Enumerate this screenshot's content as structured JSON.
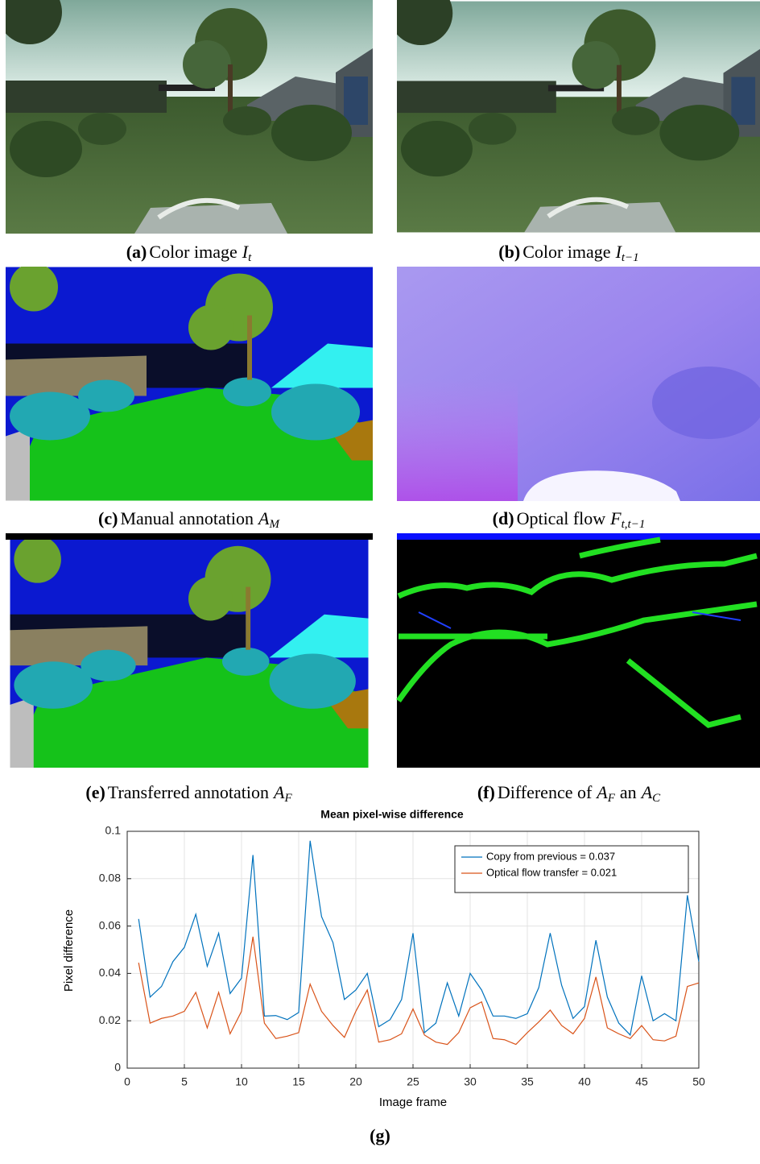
{
  "panels": [
    {
      "label": "(a)",
      "caption": [
        {
          "text": "Color image"
        },
        {
          "math": "I",
          "sub": "t"
        }
      ]
    },
    {
      "label": "(b)",
      "caption": [
        {
          "text": "Color image"
        },
        {
          "math": "I",
          "sub": "t−1"
        }
      ]
    },
    {
      "label": "(c)",
      "caption": [
        {
          "text": "Manual annotation"
        },
        {
          "math": "A",
          "sub": "M"
        }
      ]
    },
    {
      "label": "(d)",
      "caption": [
        {
          "text": "Optical flow"
        },
        {
          "math": "F",
          "sub": "t,t−1"
        }
      ]
    },
    {
      "label": "(e)",
      "caption": [
        {
          "text": "Transferred annotation"
        },
        {
          "math": "A",
          "sub": "F"
        }
      ]
    },
    {
      "label": "(f)",
      "caption": [
        {
          "text": "Difference of"
        },
        {
          "math": "A",
          "sub": "F"
        },
        {
          "text": "an"
        },
        {
          "math": "A",
          "sub": "C"
        }
      ]
    }
  ],
  "chart_label": "(g)",
  "chart_data": {
    "type": "line",
    "title": "Mean pixel-wise difference",
    "x_label": "Image frame",
    "y_label": "Pixel difference",
    "x": [
      1,
      2,
      3,
      4,
      5,
      6,
      7,
      8,
      9,
      10,
      11,
      12,
      13,
      14,
      15,
      16,
      17,
      18,
      19,
      20,
      21,
      22,
      23,
      24,
      25,
      26,
      27,
      28,
      29,
      30,
      31,
      32,
      33,
      34,
      35,
      36,
      37,
      38,
      39,
      40,
      41,
      42,
      43,
      44,
      45,
      46,
      47,
      48,
      49,
      50
    ],
    "series": [
      {
        "name": "Copy from previous = 0.037",
        "color": "#0072bd",
        "values": [
          0.063,
          0.03,
          0.0345,
          0.045,
          0.051,
          0.065,
          0.043,
          0.057,
          0.0315,
          0.038,
          0.09,
          0.022,
          0.0222,
          0.0205,
          0.0235,
          0.096,
          0.064,
          0.053,
          0.029,
          0.033,
          0.04,
          0.0175,
          0.0205,
          0.029,
          0.057,
          0.015,
          0.019,
          0.036,
          0.022,
          0.04,
          0.033,
          0.022,
          0.022,
          0.021,
          0.023,
          0.034,
          0.057,
          0.035,
          0.021,
          0.026,
          0.054,
          0.03,
          0.019,
          0.014,
          0.039,
          0.02,
          0.023,
          0.02,
          0.073,
          0.045
        ]
      },
      {
        "name": "Optical flow transfer = 0.021",
        "color": "#d95319",
        "values": [
          0.0445,
          0.019,
          0.021,
          0.022,
          0.024,
          0.032,
          0.017,
          0.032,
          0.0145,
          0.024,
          0.0555,
          0.019,
          0.0125,
          0.0135,
          0.015,
          0.0355,
          0.024,
          0.018,
          0.013,
          0.024,
          0.033,
          0.011,
          0.012,
          0.0145,
          0.025,
          0.014,
          0.011,
          0.01,
          0.015,
          0.0255,
          0.028,
          0.0125,
          0.012,
          0.01,
          0.015,
          0.0195,
          0.0245,
          0.018,
          0.0145,
          0.021,
          0.0385,
          0.017,
          0.0145,
          0.0125,
          0.018,
          0.012,
          0.0115,
          0.0135,
          0.0345,
          0.036
        ]
      }
    ],
    "xlim": [
      0,
      50
    ],
    "xticks": [
      0,
      5,
      10,
      15,
      20,
      25,
      30,
      35,
      40,
      45,
      50
    ],
    "ylim": [
      0,
      0.1
    ],
    "yticks": [
      0,
      0.02,
      0.04,
      0.06,
      0.08,
      0.1
    ],
    "grid": true,
    "legend_position": "top-right"
  }
}
